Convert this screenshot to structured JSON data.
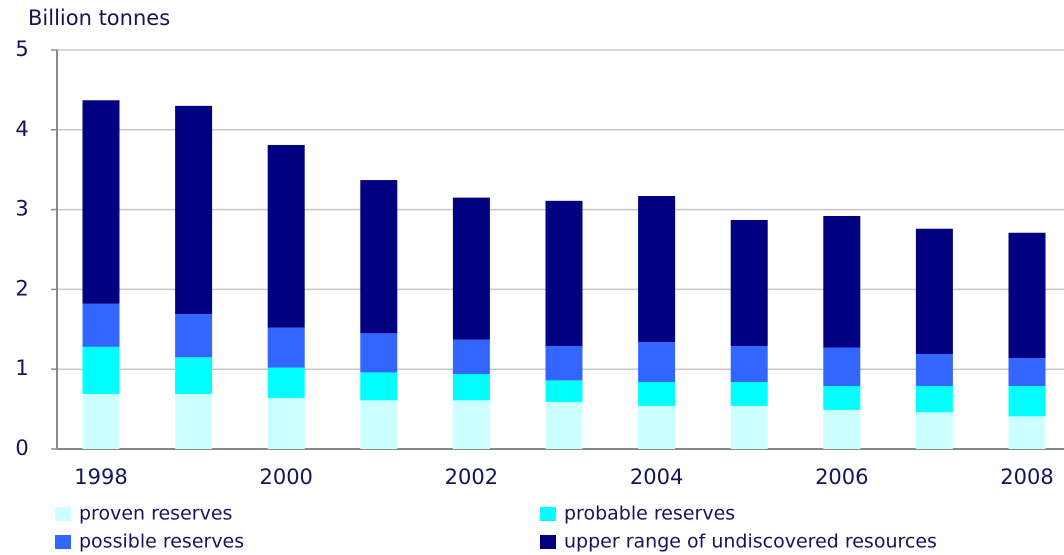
{
  "chart_data": {
    "type": "stacked_bar",
    "y_label": "Billion tonnes",
    "categories": [
      "1998",
      null,
      "2000",
      null,
      "2002",
      null,
      "2004",
      null,
      "2006",
      null,
      "2008"
    ],
    "series": [
      {
        "name": "proven reserves",
        "color": "#ccffff",
        "values": [
          0.69,
          0.69,
          0.64,
          0.61,
          0.61,
          0.59,
          0.54,
          0.54,
          0.49,
          0.46,
          0.41
        ]
      },
      {
        "name": "probable reserves",
        "color": "#00ffff",
        "values": [
          0.59,
          0.46,
          0.38,
          0.35,
          0.33,
          0.27,
          0.3,
          0.3,
          0.3,
          0.33,
          0.38
        ]
      },
      {
        "name": "possible reserves",
        "color": "#3366ff",
        "values": [
          0.54,
          0.54,
          0.5,
          0.49,
          0.43,
          0.43,
          0.5,
          0.45,
          0.48,
          0.4,
          0.35
        ]
      },
      {
        "name": "upper range of undiscovered resources",
        "color": "#000080",
        "values": [
          2.55,
          2.61,
          2.29,
          1.92,
          1.78,
          1.82,
          1.83,
          1.58,
          1.65,
          1.57,
          1.57
        ]
      }
    ],
    "ylim": [
      0,
      5
    ],
    "yticks": [
      0,
      1,
      2,
      3,
      4,
      5
    ],
    "grid": true
  }
}
